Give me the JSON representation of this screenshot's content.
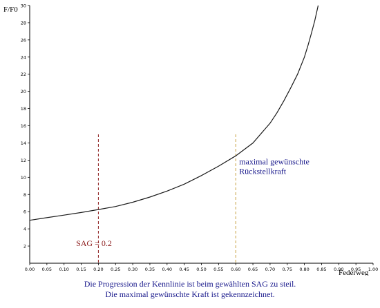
{
  "chart_data": {
    "type": "line",
    "ylabel": "F/F0",
    "xlabel": "Federweg",
    "xlim": [
      0,
      1.0
    ],
    "ylim": [
      0,
      30
    ],
    "x_ticks": [
      "0.00",
      "0.05",
      "0.10",
      "0.15",
      "0.20",
      "0.25",
      "0.30",
      "0.35",
      "0.40",
      "0.45",
      "0.50",
      "0.55",
      "0.60",
      "0.65",
      "0.70",
      "0.75",
      "0.80",
      "0.85",
      "0.90",
      "0.95",
      "1.00"
    ],
    "y_ticks": [
      "2",
      "4",
      "6",
      "8",
      "10",
      "12",
      "14",
      "16",
      "18",
      "20",
      "22",
      "24",
      "26",
      "28",
      "30"
    ],
    "series": [
      {
        "color": "#1a1a1a",
        "x": [
          0.0,
          0.05,
          0.1,
          0.15,
          0.2,
          0.25,
          0.3,
          0.35,
          0.4,
          0.45,
          0.5,
          0.55,
          0.6,
          0.65,
          0.7,
          0.72,
          0.74,
          0.76,
          0.78,
          0.8,
          0.81,
          0.82,
          0.83,
          0.84
        ],
        "y": [
          5.0,
          5.3,
          5.6,
          5.9,
          6.25,
          6.6,
          7.1,
          7.7,
          8.4,
          9.2,
          10.2,
          11.3,
          12.5,
          14.0,
          16.3,
          17.5,
          18.9,
          20.4,
          22.0,
          24.0,
          25.3,
          26.7,
          28.2,
          30.0
        ]
      }
    ],
    "vlines": [
      {
        "x": 0.2,
        "y_top": 15,
        "color": "#8b1a1a"
      },
      {
        "x": 0.6,
        "y_top": 15,
        "color": "#c8a040"
      }
    ],
    "annotations": [
      {
        "id": "sag",
        "lines": [
          "SAG  =  0.2"
        ],
        "color": "#8b1a1a",
        "x": 0.135,
        "y": 2.0
      },
      {
        "id": "maxforce",
        "lines": [
          "maximal gewünschte",
          "Rückstellkraft"
        ],
        "color": "#1a1a8c",
        "x": 0.61,
        "y": 11.5
      }
    ]
  },
  "caption": {
    "line1": "Die Progression der Kennlinie ist beim gewählten SAG zu steil.",
    "line2": "Die maximal gewünschte Kraft ist gekennzeichnet."
  }
}
